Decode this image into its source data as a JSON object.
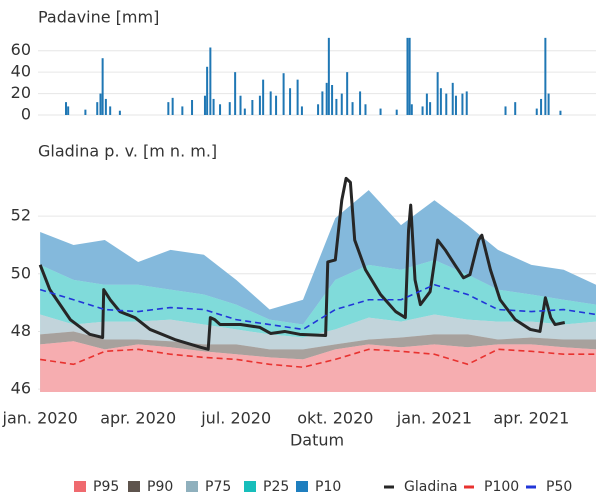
{
  "chart_data": [
    {
      "type": "bar",
      "title": "Padavine [mm]",
      "color": "#1f77b4",
      "xlim": [
        "2019-12-30",
        "2021-05-31"
      ],
      "ylim": [
        0,
        70
      ],
      "yticks": [
        0,
        20,
        40,
        60
      ],
      "grid": true,
      "x": [
        "2020-01-25",
        "2020-01-27",
        "2020-02-12",
        "2020-02-23",
        "2020-02-26",
        "2020-02-28",
        "2020-03-02",
        "2020-03-06",
        "2020-03-15",
        "2020-04-29",
        "2020-05-03",
        "2020-05-12",
        "2020-05-21",
        "2020-06-02",
        "2020-06-04",
        "2020-06-07",
        "2020-06-10",
        "2020-06-16",
        "2020-06-25",
        "2020-06-30",
        "2020-07-05",
        "2020-07-09",
        "2020-07-16",
        "2020-07-23",
        "2020-07-26",
        "2020-08-02",
        "2020-08-07",
        "2020-08-14",
        "2020-08-20",
        "2020-08-27",
        "2020-08-31",
        "2020-09-15",
        "2020-09-19",
        "2020-09-23",
        "2020-09-25",
        "2020-09-28",
        "2020-10-02",
        "2020-10-07",
        "2020-10-12",
        "2020-10-17",
        "2020-10-24",
        "2020-10-29",
        "2020-11-12",
        "2020-11-27",
        "2020-12-07",
        "2020-12-09",
        "2020-12-11",
        "2020-12-21",
        "2020-12-25",
        "2020-12-28",
        "2021-01-04",
        "2021-01-07",
        "2021-01-12",
        "2021-01-18",
        "2021-01-21",
        "2021-01-27",
        "2021-01-31",
        "2021-03-08",
        "2021-03-17",
        "2021-04-06",
        "2021-04-10",
        "2021-04-14",
        "2021-04-17",
        "2021-04-28"
      ],
      "values": [
        12,
        8,
        5,
        12,
        20,
        53,
        15,
        8,
        4,
        12,
        16,
        8,
        14,
        18,
        45,
        63,
        15,
        10,
        12,
        40,
        18,
        6,
        14,
        18,
        33,
        22,
        18,
        39,
        25,
        33,
        8,
        10,
        22,
        30,
        72,
        28,
        15,
        20,
        40,
        12,
        22,
        10,
        6,
        5,
        72,
        72,
        10,
        8,
        20,
        12,
        40,
        25,
        20,
        30,
        18,
        20,
        22,
        8,
        12,
        6,
        15,
        72,
        20,
        4
      ]
    },
    {
      "type": "area",
      "title": "Gladina p. v. [m n. m.]",
      "x_label": "Datum",
      "xlim": [
        "2019-12-30",
        "2021-05-31"
      ],
      "ylim": [
        45.9,
        53.6
      ],
      "yticks": [
        46,
        48,
        50,
        52
      ],
      "grid": true,
      "xticks": [
        {
          "value": "2020-01-01",
          "label": "jan. 2020"
        },
        {
          "value": "2020-04-01",
          "label": "apr. 2020"
        },
        {
          "value": "2020-07-01",
          "label": "jul. 2020"
        },
        {
          "value": "2020-10-01",
          "label": "okt. 2020"
        },
        {
          "value": "2021-01-01",
          "label": "jan. 2021"
        },
        {
          "value": "2021-04-01",
          "label": "apr. 2021"
        }
      ],
      "x": [
        "2020-01-01",
        "2020-02-01",
        "2020-03-01",
        "2020-04-01",
        "2020-05-01",
        "2020-06-01",
        "2020-07-01",
        "2020-08-01",
        "2020-09-01",
        "2020-10-01",
        "2020-11-01",
        "2020-12-01",
        "2021-01-01",
        "2021-02-01",
        "2021-03-01",
        "2021-04-01",
        "2021-05-01",
        "2021-05-31"
      ],
      "series": [
        {
          "name": "P95",
          "style": "band",
          "color": "#ef6a6f",
          "values": [
            47.55,
            47.66,
            47.38,
            47.55,
            47.45,
            47.31,
            47.21,
            47.1,
            47.03,
            47.38,
            47.55,
            47.45,
            47.55,
            47.45,
            47.55,
            47.55,
            47.45,
            47.38
          ]
        },
        {
          "name": "P90",
          "style": "band",
          "color": "#5e544d",
          "values": [
            47.9,
            48.0,
            47.72,
            47.72,
            47.66,
            47.55,
            47.55,
            47.38,
            47.38,
            47.55,
            47.72,
            47.79,
            47.9,
            47.9,
            47.72,
            47.79,
            47.72,
            47.72
          ]
        },
        {
          "name": "P75",
          "style": "band",
          "color": "#8fb0bd",
          "values": [
            48.59,
            48.24,
            48.34,
            48.34,
            48.41,
            48.24,
            48.07,
            47.9,
            47.79,
            48.07,
            48.48,
            48.34,
            48.59,
            48.41,
            48.34,
            48.34,
            48.24,
            48.34
          ]
        },
        {
          "name": "P25",
          "style": "band",
          "color": "#17bebb",
          "values": [
            50.31,
            49.79,
            49.62,
            49.62,
            49.45,
            49.28,
            48.93,
            48.41,
            48.24,
            49.79,
            50.31,
            50.14,
            50.48,
            49.97,
            49.45,
            49.28,
            49.1,
            48.93
          ]
        },
        {
          "name": "P10",
          "style": "band",
          "color": "#1f7fbf",
          "values": [
            51.45,
            51.0,
            51.17,
            50.41,
            50.83,
            50.66,
            49.79,
            48.76,
            49.1,
            51.93,
            52.9,
            51.69,
            52.55,
            51.69,
            50.83,
            50.31,
            50.14,
            49.62
          ]
        },
        {
          "name": "Gladina",
          "style": "solid",
          "color": "#262626",
          "x": [
            "2020-01-01",
            "2020-01-10",
            "2020-01-29",
            "2020-02-16",
            "2020-02-28",
            "2020-02-29",
            "2020-03-06",
            "2020-03-15",
            "2020-03-29",
            "2020-04-12",
            "2020-05-05",
            "2020-05-29",
            "2020-06-05",
            "2020-06-07",
            "2020-06-11",
            "2020-06-16",
            "2020-07-05",
            "2020-07-23",
            "2020-08-02",
            "2020-08-15",
            "2020-08-29",
            "2020-09-22",
            "2020-09-24",
            "2020-10-01",
            "2020-10-07",
            "2020-10-11",
            "2020-10-15",
            "2020-10-19",
            "2020-10-29",
            "2020-11-12",
            "2020-11-26",
            "2020-12-05",
            "2020-12-08",
            "2020-12-10",
            "2020-12-14",
            "2020-12-19",
            "2020-12-28",
            "2021-01-04",
            "2021-01-11",
            "2021-01-20",
            "2021-01-28",
            "2021-02-03",
            "2021-02-11",
            "2021-02-14",
            "2021-02-22",
            "2021-03-03",
            "2021-03-17",
            "2021-03-31",
            "2021-04-09",
            "2021-04-14",
            "2021-04-19",
            "2021-04-23",
            "2021-05-02"
          ],
          "values": [
            50.31,
            49.45,
            48.41,
            47.9,
            47.79,
            49.45,
            49.1,
            48.69,
            48.48,
            48.07,
            47.72,
            47.45,
            47.38,
            48.48,
            48.41,
            48.24,
            48.24,
            48.14,
            47.93,
            48.0,
            47.9,
            47.86,
            50.41,
            50.48,
            52.55,
            53.31,
            53.17,
            51.17,
            50.14,
            49.28,
            48.69,
            48.48,
            51.52,
            52.38,
            49.79,
            48.93,
            49.38,
            51.17,
            50.83,
            50.31,
            49.86,
            49.97,
            51.17,
            51.34,
            50.14,
            49.1,
            48.41,
            48.07,
            48.0,
            49.17,
            48.48,
            48.24,
            48.31
          ]
        },
        {
          "name": "P100",
          "style": "dash",
          "color": "#e8322f",
          "values": [
            47.03,
            46.86,
            47.31,
            47.38,
            47.21,
            47.1,
            47.03,
            46.86,
            46.76,
            47.03,
            47.38,
            47.31,
            47.21,
            46.86,
            47.38,
            47.31,
            47.21,
            47.21
          ]
        },
        {
          "name": "P50",
          "style": "dash",
          "color": "#2136d8",
          "values": [
            49.45,
            49.1,
            48.76,
            48.69,
            48.83,
            48.76,
            48.41,
            48.24,
            48.07,
            48.76,
            49.1,
            49.1,
            49.62,
            49.28,
            48.76,
            48.69,
            48.76,
            48.59
          ]
        }
      ]
    }
  ]
}
